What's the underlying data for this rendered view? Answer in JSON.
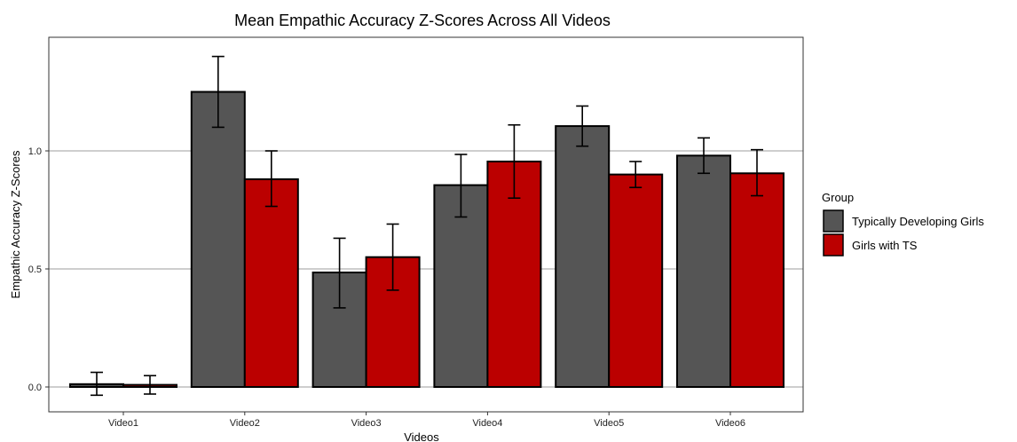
{
  "chart_data": {
    "type": "bar",
    "title": "Mean Empathic Accuracy Z-Scores Across All Videos",
    "xlabel": "Videos",
    "ylabel": "Empathic Accuracy Z-Scores",
    "categories": [
      "Video1",
      "Video2",
      "Video3",
      "Video4",
      "Video5",
      "Video6"
    ],
    "series": [
      {
        "name": "Typically Developing Girls",
        "color": "#555555",
        "values": [
          0.012,
          1.25,
          0.485,
          0.855,
          1.105,
          0.98
        ],
        "error_low": [
          -0.035,
          1.1,
          0.335,
          0.72,
          1.02,
          0.905
        ],
        "error_high": [
          0.062,
          1.4,
          0.63,
          0.985,
          1.19,
          1.055
        ]
      },
      {
        "name": "Girls with TS",
        "color": "#BB0000",
        "values": [
          0.009,
          0.88,
          0.55,
          0.955,
          0.9,
          0.905
        ],
        "error_low": [
          -0.03,
          0.765,
          0.41,
          0.8,
          0.845,
          0.81
        ],
        "error_high": [
          0.048,
          1.0,
          0.69,
          1.11,
          0.955,
          1.005
        ]
      }
    ],
    "yticks": [
      0.0,
      0.5,
      1.0
    ],
    "ytick_labels": [
      "0.0",
      "0.5",
      "1.0"
    ],
    "ylim": [
      -0.1,
      1.48
    ],
    "grid": "horizontal major lines",
    "legend": {
      "title": "Group",
      "placement": "right"
    }
  }
}
